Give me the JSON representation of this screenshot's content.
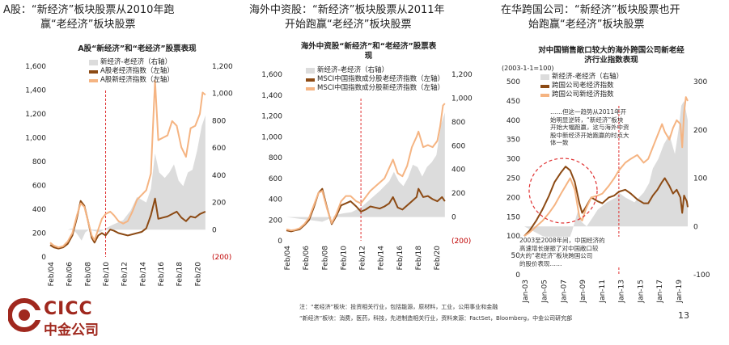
{
  "headings": [
    {
      "lines": [
        "A股：“新经济”板块股票从2010年跑",
        "赢“老经济”板块股票"
      ]
    },
    {
      "lines": [
        "海外中资股：“新经济”板块股票从2011年",
        "开始跑赢“老经济”板块股票"
      ]
    },
    {
      "lines": [
        "在华跨国公司：“新经济”板块股票也开",
        "始跑赢“老经济”板块股票"
      ]
    }
  ],
  "charts": [
    {
      "title": [
        "A股“新经济”和“老经济”股票表现"
      ],
      "subnote": "",
      "type": "line",
      "x_labels": [
        "Feb/04",
        "Feb/06",
        "Feb/08",
        "Feb/10",
        "Feb/12",
        "Feb/14",
        "Feb/16",
        "Feb/18",
        "Feb/20"
      ],
      "x_range": [
        2004.1,
        2021.0
      ],
      "left_axis": {
        "ticks": [
          "0",
          "200",
          "400",
          "600",
          "800",
          "1,000",
          "1,200",
          "1,400",
          "1,600"
        ],
        "min": 0,
        "max": 1600
      },
      "right_axis": {
        "ticks": [
          "(200)",
          "0",
          "200",
          "400",
          "600",
          "800",
          "1,000",
          "1,200"
        ],
        "min": -200,
        "max": 1200,
        "neg_color": "#c00000"
      },
      "vline_x": 2010.1,
      "series": [
        {
          "name": "新经济-老经济（右轴）",
          "axis": "right",
          "kind": "area",
          "color": "#dcdcdc",
          "x": [
            2004.1,
            2005.0,
            2006.0,
            2006.5,
            2007.0,
            2007.5,
            2007.9,
            2008.3,
            2008.9,
            2009.5,
            2010.1,
            2011.0,
            2012.0,
            2012.8,
            2013.5,
            2014.0,
            2014.5,
            2015.0,
            2015.45,
            2015.9,
            2016.5,
            2017.0,
            2017.5,
            2018.0,
            2018.5,
            2019.0,
            2019.5,
            2020.0,
            2020.5,
            2020.9
          ],
          "y": [
            0,
            0,
            0,
            10,
            -30,
            -80,
            -20,
            0,
            -10,
            -20,
            10,
            40,
            70,
            140,
            240,
            220,
            200,
            300,
            560,
            420,
            380,
            420,
            480,
            360,
            320,
            420,
            440,
            580,
            760,
            840
          ]
        },
        {
          "name": "A股老经济指数（左轴）",
          "axis": "left",
          "kind": "line",
          "color": "#8c4a14",
          "x": [
            2004.1,
            2004.5,
            2005.0,
            2005.5,
            2006.0,
            2006.5,
            2007.0,
            2007.4,
            2007.8,
            2008.2,
            2008.6,
            2008.9,
            2009.3,
            2009.7,
            2010.1,
            2010.6,
            2011.0,
            2011.5,
            2012.0,
            2012.5,
            2013.0,
            2013.5,
            2014.0,
            2014.5,
            2015.0,
            2015.45,
            2015.8,
            2016.3,
            2016.8,
            2017.3,
            2017.8,
            2018.3,
            2018.8,
            2019.3,
            2019.8,
            2020.3,
            2020.9
          ],
          "y": [
            100,
            80,
            70,
            80,
            110,
            180,
            330,
            470,
            430,
            300,
            160,
            120,
            180,
            200,
            180,
            230,
            220,
            200,
            190,
            180,
            190,
            200,
            210,
            240,
            350,
            490,
            320,
            330,
            340,
            360,
            380,
            330,
            300,
            340,
            330,
            360,
            380
          ]
        },
        {
          "name": "A股新经济指数（左轴）",
          "axis": "left",
          "kind": "line",
          "color": "#f5b482",
          "x": [
            2004.1,
            2004.5,
            2005.0,
            2005.5,
            2006.0,
            2006.5,
            2007.0,
            2007.4,
            2007.8,
            2008.2,
            2008.6,
            2008.9,
            2009.3,
            2009.7,
            2010.1,
            2010.6,
            2011.0,
            2011.5,
            2012.0,
            2012.5,
            2013.0,
            2013.5,
            2014.0,
            2014.5,
            2015.0,
            2015.45,
            2015.8,
            2016.3,
            2016.8,
            2017.3,
            2017.8,
            2018.3,
            2018.8,
            2019.3,
            2019.8,
            2020.3,
            2020.6,
            2020.9
          ],
          "y": [
            120,
            95,
            80,
            90,
            130,
            200,
            350,
            450,
            420,
            300,
            180,
            140,
            230,
            320,
            360,
            380,
            350,
            300,
            280,
            300,
            380,
            480,
            520,
            560,
            700,
            1480,
            980,
            1000,
            1020,
            1140,
            1100,
            920,
            840,
            1080,
            1100,
            1200,
            1380,
            1360
          ]
        }
      ]
    },
    {
      "title": [
        "海外中资股“新经济”和“老经济”股票表",
        "现"
      ],
      "subnote": "",
      "type": "line",
      "x_labels": [
        "Feb/04",
        "Feb/06",
        "Feb/08",
        "Feb/10",
        "Feb/12",
        "Feb/14",
        "Feb/16",
        "Feb/18",
        "Feb/20"
      ],
      "x_range": [
        2004.1,
        2021.0
      ],
      "left_axis": {
        "ticks": [
          "0",
          "200",
          "400",
          "600",
          "800",
          "1,000",
          "1,200",
          "1,400",
          "1,600"
        ],
        "min": 0,
        "max": 1600
      },
      "right_axis": {
        "ticks": [
          "(200)",
          "0",
          "200",
          "400",
          "600",
          "800",
          "1,000",
          "1,200"
        ],
        "min": -200,
        "max": 1200,
        "neg_color": "#c00000"
      },
      "vline_x": 2012.0,
      "series": [
        {
          "name": "新经济-老经济（右轴）",
          "axis": "right",
          "kind": "area",
          "color": "#dcdcdc",
          "x": [
            2004.1,
            2005.0,
            2006.0,
            2007.0,
            2007.9,
            2008.5,
            2009.0,
            2009.5,
            2010.1,
            2011.0,
            2012.0,
            2013.0,
            2014.0,
            2015.0,
            2015.5,
            2016.0,
            2016.5,
            2017.0,
            2017.5,
            2018.0,
            2018.5,
            2019.0,
            2019.5,
            2020.0,
            2020.5,
            2020.9
          ],
          "y": [
            0,
            -10,
            -20,
            -30,
            -40,
            -20,
            0,
            20,
            30,
            40,
            80,
            150,
            220,
            300,
            380,
            300,
            260,
            330,
            440,
            420,
            340,
            420,
            460,
            520,
            780,
            880
          ]
        },
        {
          "name": "MSCI中国指数成分股老经济指数（左轴）",
          "axis": "left",
          "kind": "line",
          "color": "#8c4a14",
          "x": [
            2004.1,
            2004.6,
            2005.0,
            2005.5,
            2006.0,
            2006.5,
            2007.0,
            2007.5,
            2007.9,
            2008.4,
            2008.9,
            2009.4,
            2009.9,
            2010.4,
            2010.9,
            2011.5,
            2012.0,
            2012.5,
            2013.0,
            2013.5,
            2014.0,
            2014.5,
            2015.0,
            2015.4,
            2015.9,
            2016.4,
            2016.9,
            2017.4,
            2017.9,
            2018.1,
            2018.6,
            2019.1,
            2019.6,
            2020.1,
            2020.6,
            2020.9
          ],
          "y": [
            100,
            90,
            100,
            110,
            150,
            200,
            320,
            460,
            500,
            320,
            160,
            240,
            340,
            360,
            380,
            330,
            280,
            300,
            330,
            320,
            310,
            330,
            360,
            420,
            320,
            300,
            340,
            380,
            420,
            500,
            420,
            430,
            400,
            380,
            420,
            380
          ]
        },
        {
          "name": "MSCI中国指数成分股新经济指数（左轴）",
          "axis": "left",
          "kind": "line",
          "color": "#f5b482",
          "x": [
            2004.1,
            2004.6,
            2005.0,
            2005.5,
            2006.0,
            2006.5,
            2007.0,
            2007.5,
            2007.9,
            2008.4,
            2008.9,
            2009.4,
            2009.9,
            2010.4,
            2010.9,
            2011.5,
            2012.0,
            2012.5,
            2013.0,
            2013.5,
            2014.0,
            2014.5,
            2015.0,
            2015.4,
            2015.9,
            2016.4,
            2016.9,
            2017.4,
            2017.9,
            2018.1,
            2018.6,
            2019.1,
            2019.6,
            2020.1,
            2020.4,
            2020.7,
            2020.9
          ],
          "y": [
            110,
            100,
            105,
            120,
            160,
            220,
            340,
            460,
            480,
            310,
            170,
            260,
            380,
            430,
            430,
            380,
            360,
            420,
            480,
            520,
            560,
            600,
            700,
            780,
            650,
            620,
            720,
            900,
            1000,
            1050,
            900,
            920,
            900,
            960,
            1100,
            1300,
            1320
          ]
        }
      ]
    },
    {
      "title": [
        "对中国销售敞口较大的海外跨国公司新老经",
        "济行业指数表现"
      ],
      "subnote": "(2003-1-1=100)",
      "type": "line",
      "x_labels": [
        "Jan-03",
        "Jan-05",
        "Jan-07",
        "Jan-09",
        "Jan-11",
        "Jan-13",
        "Jan-15",
        "Jan-17",
        "Jan-19"
      ],
      "x_range": [
        2003.0,
        2020.8
      ],
      "left_axis": {
        "ticks": [
          "0",
          "50",
          "100",
          "150",
          "200",
          "250",
          "300",
          "350",
          "400",
          "450",
          "500"
        ],
        "min": 0,
        "max": 500
      },
      "right_axis": {
        "ticks": [
          "-100",
          "0",
          "100",
          "200",
          "300"
        ],
        "min": -100,
        "max": 300,
        "neg_color": "#222222"
      },
      "vline_x": 2013.3,
      "series": [
        {
          "name": "新经济-老经济（右轴）",
          "axis": "right",
          "kind": "area",
          "color": "#dcdcdc",
          "x": [
            2003.0,
            2004.0,
            2005.0,
            2006.0,
            2006.8,
            2007.6,
            2008.2,
            2008.8,
            2009.2,
            2009.8,
            2010.5,
            2011.0,
            2012.0,
            2013.0,
            2013.3,
            2014.0,
            2015.0,
            2016.0,
            2016.6,
            2017.0,
            2017.6,
            2018.2,
            2018.8,
            2019.4,
            2019.8,
            2020.1,
            2020.4,
            2020.8
          ],
          "y": [
            0,
            -10,
            -20,
            -25,
            -35,
            -40,
            -10,
            30,
            10,
            0,
            20,
            35,
            50,
            60,
            70,
            60,
            50,
            70,
            90,
            120,
            140,
            170,
            190,
            150,
            200,
            250,
            260,
            220
          ]
        },
        {
          "name": "跨国公司老经济指数",
          "axis": "left",
          "kind": "line",
          "color": "#8c4a14",
          "x": [
            2003.0,
            2003.6,
            2004.3,
            2005.0,
            2005.7,
            2006.3,
            2007.0,
            2007.5,
            2008.0,
            2008.5,
            2009.0,
            2009.3,
            2009.7,
            2010.3,
            2011.0,
            2011.5,
            2012.2,
            2012.8,
            2013.3,
            2014.0,
            2014.6,
            2015.3,
            2016.0,
            2016.5,
            2017.0,
            2017.5,
            2018.0,
            2018.3,
            2018.8,
            2019.2,
            2019.6,
            2020.0,
            2020.2,
            2020.4,
            2020.7,
            2020.8
          ],
          "y": [
            100,
            115,
            140,
            170,
            205,
            240,
            265,
            280,
            270,
            240,
            185,
            160,
            175,
            200,
            190,
            185,
            200,
            205,
            215,
            220,
            210,
            195,
            185,
            185,
            205,
            220,
            240,
            250,
            230,
            210,
            220,
            200,
            160,
            205,
            190,
            175
          ]
        },
        {
          "name": "跨国公司新经济指数",
          "axis": "left",
          "kind": "line",
          "color": "#f5b482",
          "x": [
            2003.0,
            2003.6,
            2004.3,
            2005.0,
            2005.7,
            2006.3,
            2007.0,
            2007.5,
            2008.0,
            2008.5,
            2009.0,
            2009.3,
            2009.7,
            2010.3,
            2011.0,
            2011.5,
            2012.2,
            2012.8,
            2013.3,
            2014.0,
            2014.6,
            2015.3,
            2016.0,
            2016.5,
            2017.0,
            2017.5,
            2018.0,
            2018.3,
            2018.8,
            2019.2,
            2019.6,
            2020.0,
            2020.2,
            2020.4,
            2020.6,
            2020.8
          ],
          "y": [
            100,
            110,
            125,
            140,
            160,
            180,
            210,
            230,
            250,
            220,
            150,
            140,
            170,
            200,
            205,
            210,
            230,
            250,
            270,
            290,
            300,
            310,
            290,
            300,
            330,
            360,
            390,
            370,
            350,
            380,
            400,
            390,
            330,
            420,
            460,
            450
          ]
        }
      ]
    }
  ],
  "annotations": {
    "c3_callout": [
      "……但这一趋势从2011年开",
      "始明显逆转，“新经济”板块",
      "开始大幅跑赢，这与海外中资",
      "股中新经济开始跑赢的时点大",
      "体一致"
    ],
    "c3_lower": [
      "2003至2008年间，中国经济的",
      "高速增长提振了对中国敞口较",
      "大的“老经济”板块跨国公司",
      "的股价表现……"
    ]
  },
  "footnotes": [
    "注：“老经济”板块：投资相关行业，包括能源，原材料，工业，公用事业和金融",
    "“新经济”板块：消费，医药，科技，先进制造相关行业，资料来源：FactSet，Bloomberg，中金公司研究部"
  ],
  "logo": {
    "en": "CICC",
    "cn": "中金公司",
    "color": "#a0281e"
  },
  "page_number": "13"
}
